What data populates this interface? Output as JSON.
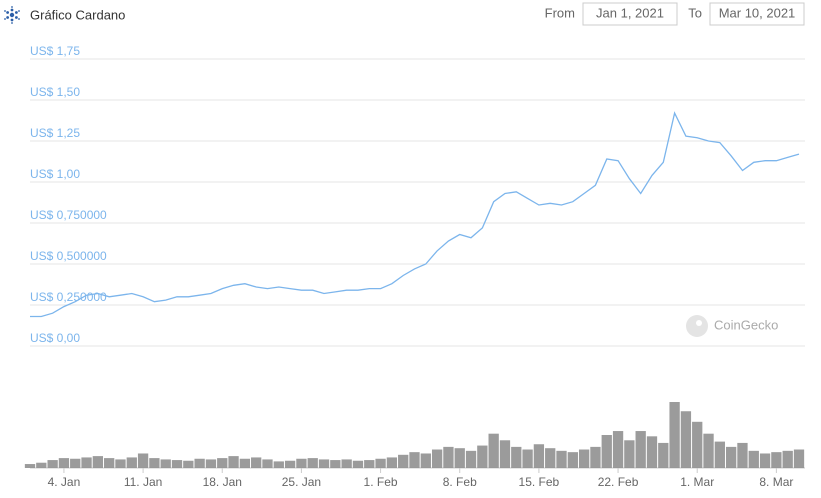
{
  "chart_data": {
    "type": "line",
    "title": "Gráfico Cardano",
    "x": [
      1,
      2,
      3,
      4,
      5,
      6,
      7,
      8,
      9,
      10,
      11,
      12,
      13,
      14,
      15,
      16,
      17,
      18,
      19,
      20,
      21,
      22,
      23,
      24,
      25,
      26,
      27,
      28,
      29,
      30,
      31,
      32,
      33,
      34,
      35,
      36,
      37,
      38,
      39,
      40,
      41,
      42,
      43,
      44,
      45,
      46,
      47,
      48,
      49,
      50,
      51,
      52,
      53,
      54,
      55,
      56,
      57,
      58,
      59,
      60,
      61,
      62,
      63,
      64,
      65,
      66,
      67,
      68,
      69
    ],
    "values": [
      0.18,
      0.18,
      0.2,
      0.24,
      0.27,
      0.31,
      0.32,
      0.3,
      0.31,
      0.32,
      0.3,
      0.27,
      0.28,
      0.3,
      0.3,
      0.31,
      0.32,
      0.35,
      0.37,
      0.38,
      0.36,
      0.35,
      0.36,
      0.35,
      0.34,
      0.34,
      0.32,
      0.33,
      0.34,
      0.34,
      0.35,
      0.35,
      0.38,
      0.43,
      0.47,
      0.5,
      0.58,
      0.64,
      0.68,
      0.66,
      0.72,
      0.88,
      0.93,
      0.94,
      0.9,
      0.86,
      0.87,
      0.86,
      0.88,
      0.93,
      0.98,
      1.14,
      1.13,
      1.02,
      0.93,
      1.04,
      1.12,
      1.42,
      1.28,
      1.27,
      1.25,
      1.24,
      1.16,
      1.07,
      1.12,
      1.13,
      1.13,
      1.15,
      1.17
    ],
    "color": "#7cb5ec",
    "volume": {
      "color": "#8a8a8a",
      "values": [
        0.6,
        0.8,
        1.2,
        1.5,
        1.4,
        1.6,
        1.8,
        1.5,
        1.3,
        1.6,
        2.2,
        1.5,
        1.3,
        1.2,
        1.1,
        1.4,
        1.3,
        1.5,
        1.8,
        1.4,
        1.6,
        1.3,
        1.0,
        1.1,
        1.4,
        1.5,
        1.3,
        1.2,
        1.3,
        1.1,
        1.2,
        1.4,
        1.6,
        2.0,
        2.4,
        2.2,
        2.8,
        3.2,
        3.0,
        2.6,
        3.4,
        5.2,
        4.2,
        3.2,
        2.8,
        3.6,
        3.0,
        2.6,
        2.4,
        2.8,
        3.2,
        5.0,
        5.6,
        4.2,
        5.6,
        4.8,
        3.8,
        10.0,
        8.6,
        7.0,
        5.2,
        4.0,
        3.2,
        3.8,
        2.6,
        2.2,
        2.4,
        2.6,
        2.8
      ]
    },
    "xlim": [
      1,
      69
    ],
    "xticks": [
      {
        "value": 4,
        "label": "4. Jan"
      },
      {
        "value": 11,
        "label": "11. Jan"
      },
      {
        "value": 18,
        "label": "18. Jan"
      },
      {
        "value": 25,
        "label": "25. Jan"
      },
      {
        "value": 32,
        "label": "1. Feb"
      },
      {
        "value": 39,
        "label": "8. Feb"
      },
      {
        "value": 46,
        "label": "15. Feb"
      },
      {
        "value": 53,
        "label": "22. Feb"
      },
      {
        "value": 60,
        "label": "1. Mar"
      },
      {
        "value": 67,
        "label": "8. Mar"
      }
    ],
    "ylim": [
      0,
      1.75
    ],
    "yticks": [
      {
        "value": 0,
        "label": "US$ 0,00"
      },
      {
        "value": 0.25,
        "label": "US$ 0,250000"
      },
      {
        "value": 0.5,
        "label": "US$ 0,500000"
      },
      {
        "value": 0.75,
        "label": "US$ 0,750000"
      },
      {
        "value": 1,
        "label": "US$ 1,00"
      },
      {
        "value": 1.25,
        "label": "US$ 1,25"
      },
      {
        "value": 1.5,
        "label": "US$ 1,50"
      },
      {
        "value": 1.75,
        "label": "US$ 1,75"
      }
    ],
    "grid": true
  },
  "controls": {
    "from_label": "From",
    "from_value": "Jan 1, 2021",
    "to_label": "To",
    "to_value": "Mar 10, 2021"
  },
  "watermark": "CoinGecko"
}
